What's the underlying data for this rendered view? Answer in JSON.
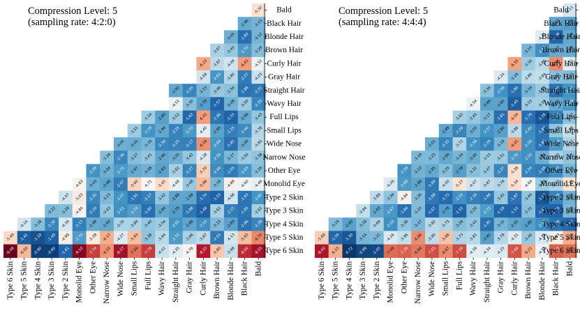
{
  "chart_data": [
    {
      "type": "heatmap",
      "title": "",
      "annotation": [
        "Compression Level: 5",
        "(sampling rate: 4:2:0)"
      ],
      "row_labels": [
        "Bald",
        "Black Hair",
        "Blonde Hair",
        "Brown Hair",
        "Curly Hair",
        "Gray Hair",
        "Straight Hair",
        "Wavy Hair",
        "Full Lips",
        "Small Lips",
        "Wide Nose",
        "Narrow Nose",
        "Other Eye",
        "Monolid Eye",
        "Type 2 Skin",
        "Type 3 Skin",
        "Type 4 Skin",
        "Type 5 Skin",
        "Type 6 Skin"
      ],
      "col_labels": [
        "Type 6 Skin",
        "Type 5 Skin",
        "Type 4 Skin",
        "Type 3 Skin",
        "Type 2 Skin",
        "Monolid Eye",
        "Other Eye",
        "Narrow Nose",
        "Wide Nose",
        "Small Lips",
        "Full Lips",
        "Wavy Hair",
        "Straight Hair",
        "Gray Hair",
        "Curly Hair",
        "Brown Hair",
        "Blonde Hair",
        "Black Hair",
        "Bald"
      ],
      "values": [
        [
          -5.32
        ],
        [
          -2.96,
          -3.13
        ],
        [
          -3.05,
          -1.8,
          -3.12
        ],
        [
          -3.67,
          -3.45,
          -2.7,
          -3.28
        ],
        [
          -6.23,
          -3.87,
          -4.09,
          -6.43,
          -4.52
        ],
        [
          -4.08,
          -2.63,
          -3.8,
          -2.07,
          -4.03
        ],
        [
          -2.92,
          -2.24,
          -3.13,
          -3.46,
          -3.34,
          -1.88,
          -2.01
        ],
        [
          -4.51,
          -3.3,
          -2.79,
          -1.57,
          -3.08,
          -3.5,
          -2.33
        ],
        [
          -3.54,
          -2.8,
          -3.52,
          -1.62,
          -6.41,
          -1.96,
          -1.55,
          -2.96,
          -3.43
        ],
        [
          -3.51,
          -2.59,
          -2.94,
          -2.25,
          -2.7,
          -4.4,
          -2.85,
          -2.15,
          -2.4,
          -3.78
        ],
        [
          -3.05,
          -3.01,
          -3.16,
          -2.34,
          -2.25,
          -2.17,
          -6.58,
          -2.64,
          -1.85,
          -3.0,
          -3.85
        ],
        [
          -3.28,
          -2.34,
          -3.27,
          -3.41,
          -2.9,
          -3.03,
          -3.42,
          -4.28,
          -2.59,
          -3.17,
          -3.5,
          -3.38
        ],
        [
          -2.59,
          -3.04,
          -2.71,
          -2.97,
          -3.08,
          -2.83,
          -3.62,
          -2.27,
          -5.7,
          -2.44,
          -2.05,
          -2.63,
          -3.29
        ],
        [
          -4.83,
          -3.03,
          -2.88,
          -2.07,
          -5.6,
          -4.71,
          -5.45,
          -4.48,
          -3.48,
          -5.96,
          -3.18,
          -4.89,
          -4.6,
          -4.46
        ],
        [
          -4.07,
          -5.03,
          -2.35,
          -3.23,
          -2.57,
          -1.91,
          -2.17,
          -3.42,
          -2.89,
          -2.89,
          -1.74,
          -1.53,
          -4.08,
          -1.93,
          -2.62
        ],
        [
          -3.22,
          -3.28,
          -4.84,
          -2.1,
          -3.43,
          -2.51,
          -2.74,
          -1.8,
          -2.94,
          -2.79,
          -1.98,
          -1.48,
          -3.62,
          -2.15,
          -1.95,
          -3.62
        ],
        [
          -4.14,
          -3.28,
          -2.3,
          -4.16,
          -2.17,
          -2.99,
          -2.93,
          -3.7,
          -3.69,
          -3.4,
          -3.54,
          -2.61,
          -2.89,
          -2.53,
          -3.23,
          -2.83,
          -1.86,
          -2.28
        ],
        [
          -5.49,
          -1.42,
          -1.19,
          -1.49,
          -4.99,
          -2.74,
          -5.08,
          -6.17,
          -4.27,
          -5.93,
          -3.38,
          -3.84,
          -2.72,
          -3.66,
          -3.87,
          -2.05,
          -4.13,
          -5.93,
          -6.7
        ],
        [
          -9.46,
          -6.0,
          -0.9,
          -0.9,
          -1.61,
          -9.1,
          -7.74,
          -6.55,
          -8.57,
          -7.04,
          -7.78,
          -4.01,
          -4.35,
          -4.76,
          -8.33,
          -5.8,
          -3.98,
          -8.04,
          -8.55
        ]
      ]
    },
    {
      "type": "heatmap",
      "title": "",
      "annotation": [
        "Compression Level: 5",
        "(sampling rate: 4:4:4)"
      ],
      "row_labels": [
        "Bald",
        "Black Hair",
        "Blonde Hair",
        "Brown Hair",
        "Curly Hair",
        "Gray Hair",
        "Straight Hair",
        "Wavy Hair",
        "Full Lips",
        "Small Lips",
        "Wide Nose",
        "Narrow Nose",
        "Other Eye",
        "Monolid Eye",
        "Type 2 Skin",
        "Type 3 Skin",
        "Type 4 Skin",
        "Type 5 Skin",
        "Type 6 Skin"
      ],
      "col_labels": [
        "Type 6 Skin",
        "Type 5 Skin",
        "Type 4 Skin",
        "Type 3 Skin",
        "Type 2 Skin",
        "Monolid Eye",
        "Other Eye",
        "Narrow Nose",
        "Wide Nose",
        "Small Lips",
        "Full Lips",
        "Wavy Hair",
        "Straight Hair",
        "Gray Hair",
        "Curly Hair",
        "Brown Hair",
        "Blonde Hair",
        "Black Hair",
        "Bald"
      ],
      "values": [
        [
          -4.11
        ],
        [
          -2.87,
          -2.78
        ],
        [
          -4.35,
          -1.58,
          -2.93
        ],
        [
          -3.15,
          -2.49,
          -2.97,
          -2.99
        ],
        [
          -6.33,
          -3.56,
          -3.86,
          -6.66,
          -4.32
        ],
        [
          -4.24,
          -3.26,
          -3.86,
          -3.94,
          -3.31,
          -3.25
        ],
        [
          -3.34,
          -2.56,
          -1.8,
          -3.14,
          -3.48,
          -1.87,
          -2.59
        ],
        [
          -4.54,
          -2.84,
          -2.85,
          -1.45,
          -3.53,
          -3.59,
          -2.95,
          -2.68
        ],
        [
          -3.62,
          -3.45,
          -3.17,
          -1.81,
          -6.04,
          -1.79,
          -1.26,
          -2.2,
          -3.37
        ],
        [
          -2.89,
          -2.26,
          -3.03,
          -2.57,
          -2.8,
          -3.86,
          -2.45,
          -1.87,
          -3.4,
          -3.96
        ],
        [
          -3.01,
          -2.25,
          -3.72,
          -2.58,
          -2.26,
          -3.18,
          -6.41,
          -2.5,
          -1.86,
          -2.73,
          -3.72
        ],
        [
          -3.19,
          -3.23,
          -2.94,
          -3.14,
          -3.0,
          -3.53,
          -3.51,
          -2.7,
          -2.53,
          -3.05,
          -3.65,
          -3.41
        ],
        [
          -2.59,
          -3.1,
          -2.95,
          -3.29,
          -2.79,
          -3.31,
          -3.47,
          -2.27,
          -5.38,
          -2.24,
          -2.08,
          -2.47,
          -3.16
        ],
        [
          -4.26,
          -2.69,
          -2.88,
          -1.99,
          -4.0,
          -5.27,
          -4.07,
          -3.87,
          -3.78,
          -5.34,
          -4.64,
          -3.49,
          -3.72,
          -5.25
        ],
        [
          -3.89,
          -3.39,
          -4.84,
          -3.26,
          -1.99,
          -1.73,
          -2.55,
          -2.18,
          -1.98,
          -3.45,
          -1.87,
          -3.4,
          -1.29,
          -2.29,
          -3.1
        ],
        [
          -3.94,
          -2.93,
          -2.67,
          -1.84,
          -3.25,
          -1.67,
          -2.78,
          -1.52,
          -3.2,
          -2.72,
          -1.59,
          -1.55,
          -3.31,
          -1.61,
          -1.55,
          -3.18
        ],
        [
          -3.24,
          -2.83,
          -3.28,
          -3.69,
          -2.53,
          -3.39,
          -3.17,
          -3.82,
          -3.73,
          -3.26,
          -3.43,
          -1.85,
          -3.15,
          -2.91,
          -2.8,
          -2.52,
          -1.89,
          -1.67
        ],
        [
          -5.68,
          -1.59,
          -1.3,
          -3.14,
          -3.21,
          -4.26,
          -3.96,
          -6.66,
          -3.9,
          -5.89,
          -3.73,
          -3.81,
          -2.81,
          -3.78,
          -4.31,
          -3.46,
          -4.24,
          -4.93,
          -6.19
        ],
        [
          -8.4,
          -6.15,
          -0.72,
          -0.99,
          -1.05,
          -7.09,
          -7.26,
          -6.94,
          -7.55,
          -6.67,
          -7.59,
          -4.39,
          -4.34,
          -4.25,
          -7.44,
          -6.21,
          -4.53,
          -7.27,
          -7.03
        ]
      ]
    }
  ]
}
